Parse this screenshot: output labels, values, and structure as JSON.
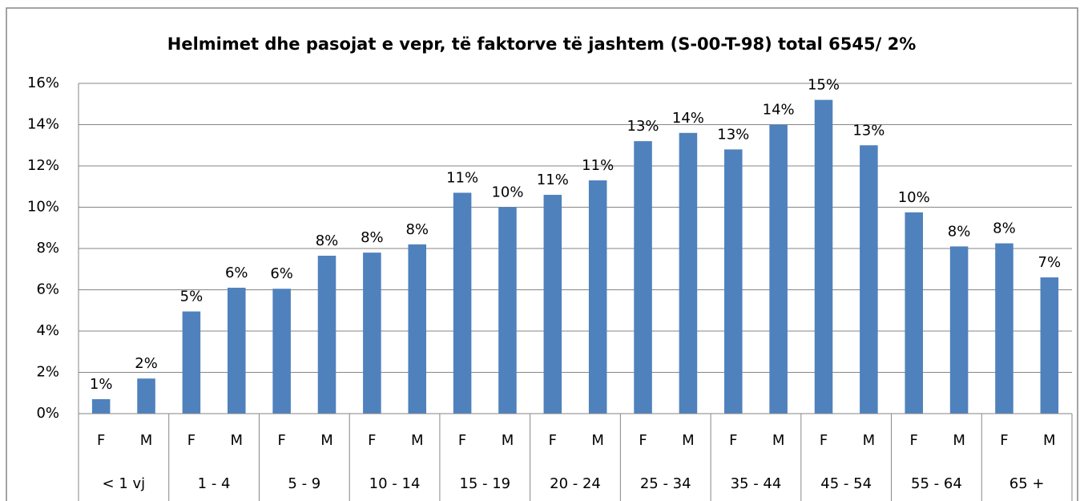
{
  "chart_data": {
    "type": "bar",
    "title": "Helmimet dhe pasojat e vepr, të faktorve të jashtem (S-00-T-98) total 6545/ 2%",
    "categories": [
      "F",
      "M",
      "F",
      "M",
      "F",
      "M",
      "F",
      "M",
      "F",
      "M",
      "F",
      "M",
      "F",
      "M",
      "F",
      "M",
      "F",
      "M",
      "F",
      "M",
      "F",
      "M"
    ],
    "groups": [
      "< 1 vj",
      "1 - 4",
      "5 - 9",
      "10 - 14",
      "15 - 19",
      "20 - 24",
      "25 - 34",
      "35 - 44",
      "45 - 54",
      "55 - 64",
      "65 +"
    ],
    "values": [
      0.7,
      1.7,
      4.95,
      6.1,
      6.05,
      7.65,
      7.8,
      8.2,
      10.7,
      10.0,
      10.6,
      11.3,
      13.2,
      13.6,
      12.8,
      14.0,
      15.2,
      13.0,
      9.75,
      8.1,
      8.25,
      6.6
    ],
    "value_labels": [
      "1%",
      "2%",
      "5%",
      "6%",
      "6%",
      "8%",
      "8%",
      "8%",
      "11%",
      "10%",
      "11%",
      "11%",
      "13%",
      "14%",
      "13%",
      "14%",
      "15%",
      "13%",
      "10%",
      "8%",
      "8%",
      "7%"
    ],
    "color": "#4f81bd",
    "ylim": [
      0,
      16
    ],
    "yticks": [
      {
        "value": 0,
        "label": "0%"
      },
      {
        "value": 2,
        "label": "2%"
      },
      {
        "value": 4,
        "label": "4%"
      },
      {
        "value": 6,
        "label": "6%"
      },
      {
        "value": 8,
        "label": "8%"
      },
      {
        "value": 10,
        "label": "10%"
      },
      {
        "value": 12,
        "label": "12%"
      },
      {
        "value": 14,
        "label": "14%"
      },
      {
        "value": 16,
        "label": "16%"
      }
    ],
    "grid": true
  }
}
